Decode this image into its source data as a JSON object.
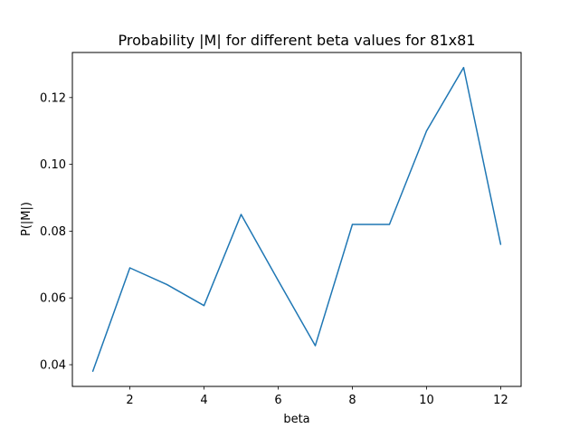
{
  "chart_data": {
    "type": "line",
    "title": "Probability |M| for different beta values for 81x81",
    "xlabel": "beta",
    "ylabel": "P(|M|)",
    "x": [
      1,
      2,
      3,
      4,
      5,
      6,
      7,
      8,
      9,
      10,
      11,
      12
    ],
    "series": [
      {
        "values": [
          0.038,
          0.069,
          0.064,
          0.0577,
          0.085,
          0.0652,
          0.0457,
          0.082,
          0.082,
          0.11,
          0.129,
          0.076
        ],
        "color": "#1f77b4"
      }
    ],
    "xlim": [
      0.45,
      12.55
    ],
    "ylim": [
      0.0335,
      0.1335
    ],
    "xticks": [
      2,
      4,
      6,
      8,
      10,
      12
    ],
    "xtick_labels": [
      "2",
      "4",
      "6",
      "8",
      "10",
      "12"
    ],
    "yticks": [
      0.04,
      0.06,
      0.08,
      0.1,
      0.12
    ],
    "ytick_labels": [
      "0.04",
      "0.06",
      "0.08",
      "0.10",
      "0.12"
    ],
    "grid": false,
    "legend": "none"
  }
}
